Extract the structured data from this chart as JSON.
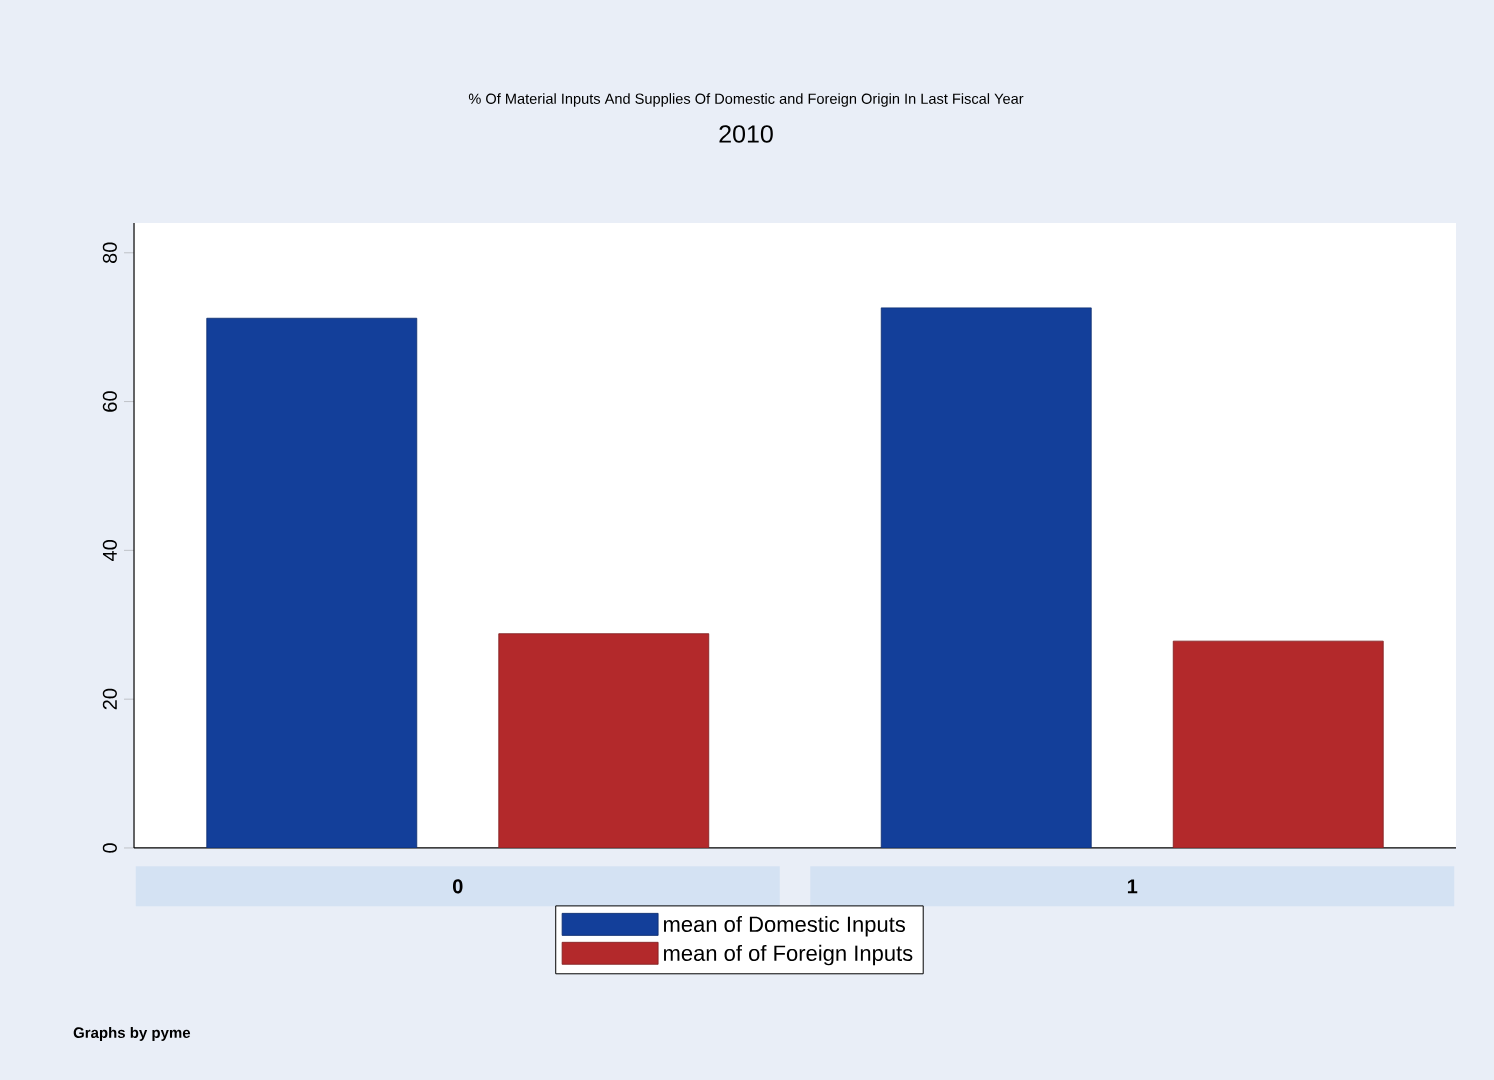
{
  "chart_data": {
    "type": "bar",
    "title": "% Of Material Inputs And Supplies Of Domestic and Foreign Origin In Last Fiscal Year",
    "subtitle": "2010",
    "categories": [
      "0",
      "1"
    ],
    "series": [
      {
        "name": "mean of Domestic Inputs",
        "color": "#133f9a",
        "values": [
          71.2,
          72.6
        ]
      },
      {
        "name": "mean of of Foreign Inputs",
        "color": "#b3292b",
        "values": [
          28.8,
          27.8
        ]
      }
    ],
    "ylim": [
      0,
      84
    ],
    "yticks": [
      0,
      20,
      40,
      60,
      80
    ],
    "grid": false,
    "legend": "bottom",
    "annotations": [
      "Graphs by pyme"
    ]
  }
}
